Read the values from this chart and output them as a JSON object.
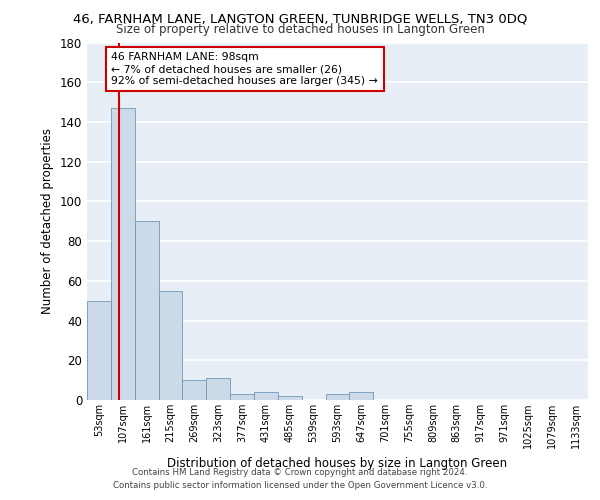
{
  "title": "46, FARNHAM LANE, LANGTON GREEN, TUNBRIDGE WELLS, TN3 0DQ",
  "subtitle": "Size of property relative to detached houses in Langton Green",
  "xlabel": "Distribution of detached houses by size in Langton Green",
  "ylabel": "Number of detached properties",
  "bin_labels": [
    "53sqm",
    "107sqm",
    "161sqm",
    "215sqm",
    "269sqm",
    "323sqm",
    "377sqm",
    "431sqm",
    "485sqm",
    "539sqm",
    "593sqm",
    "647sqm",
    "701sqm",
    "755sqm",
    "809sqm",
    "863sqm",
    "917sqm",
    "971sqm",
    "1025sqm",
    "1079sqm",
    "1133sqm"
  ],
  "bar_heights": [
    50,
    147,
    90,
    55,
    10,
    11,
    3,
    4,
    2,
    0,
    3,
    4,
    0,
    0,
    0,
    0,
    0,
    0,
    0,
    0,
    0
  ],
  "bar_color": "#ccd9e8",
  "bar_edgecolor": "#7098b8",
  "background_color": "#e8eef5",
  "grid_color": "#ffffff",
  "annotation_text": "46 FARNHAM LANE: 98sqm\n← 7% of detached houses are smaller (26)\n92% of semi-detached houses are larger (345) →",
  "annotation_box_edgecolor": "#cc0000",
  "vline_x": 0.83,
  "vline_color": "#cc0000",
  "ylim": [
    0,
    180
  ],
  "yticks": [
    0,
    20,
    40,
    60,
    80,
    100,
    120,
    140,
    160,
    180
  ],
  "footer_line1": "Contains HM Land Registry data © Crown copyright and database right 2024.",
  "footer_line2": "Contains public sector information licensed under the Open Government Licence v3.0."
}
